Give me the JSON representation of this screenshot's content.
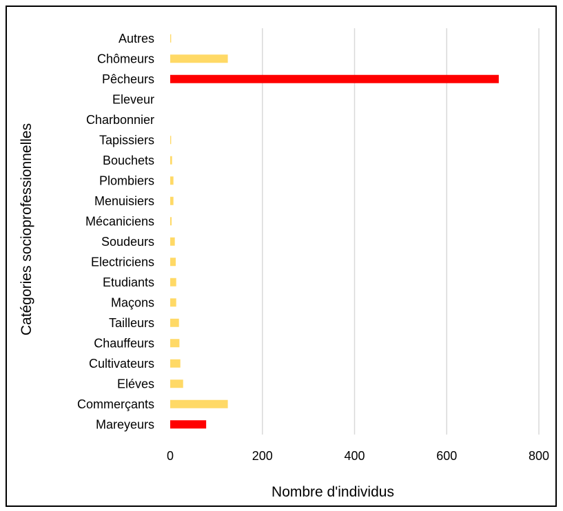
{
  "chart_data": {
    "type": "bar",
    "orientation": "horizontal",
    "xlabel": "Nombre d'individus",
    "ylabel": "Catégories socioprofessionnelles",
    "xlim": [
      0,
      800
    ],
    "xticks": [
      0,
      200,
      400,
      600,
      800
    ],
    "grid": "vertical",
    "categories": [
      "Autres",
      "Chômeurs",
      "Pêcheurs",
      "Eleveur",
      "Charbonnier",
      "Tapissiers",
      "Bouchets",
      "Plombiers",
      "Menuisiers",
      "Mécaniciens",
      "Soudeurs",
      "Electriciens",
      "Etudiants",
      "Maçons",
      "Tailleurs",
      "Chauffeurs",
      "Cultivateurs",
      "Eléves",
      "Commerçants",
      "Mareyeurs"
    ],
    "values": [
      2,
      125,
      713,
      0,
      0,
      2,
      4,
      7,
      7,
      3,
      10,
      12,
      13,
      13,
      19,
      20,
      22,
      28,
      125,
      78
    ],
    "colors": [
      "#FFD966",
      "#FFD966",
      "#FF0000",
      "#FFD966",
      "#FFD966",
      "#FFD966",
      "#FFD966",
      "#FFD966",
      "#FFD966",
      "#FFD966",
      "#FFD966",
      "#FFD966",
      "#FFD966",
      "#FFD966",
      "#FFD966",
      "#FFD966",
      "#FFD966",
      "#FFD966",
      "#FFD966",
      "#FF0000"
    ],
    "gridline_color": "#D9D9D9"
  }
}
